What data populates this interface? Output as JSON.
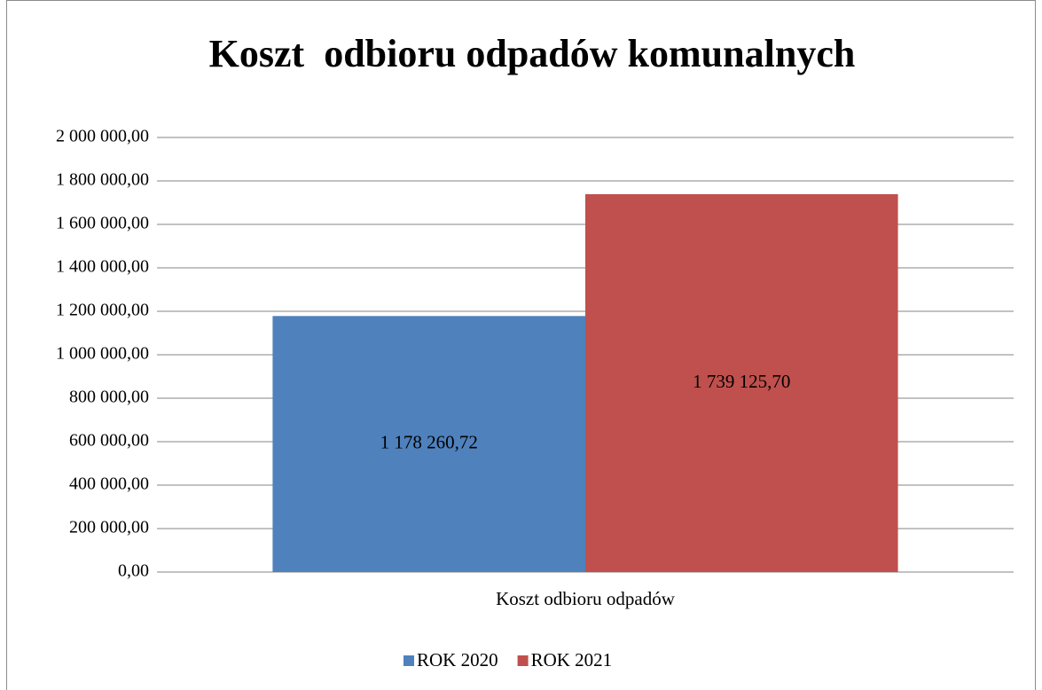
{
  "chart_data": {
    "type": "bar",
    "title": "Koszt  odbioru odpadów komunalnych",
    "categories": [
      "Koszt odbioru odpadów"
    ],
    "series": [
      {
        "name": "ROK 2020",
        "color": "#4f81bd",
        "values": [
          1178260.72
        ],
        "value_labels": [
          "1 178 260,72"
        ]
      },
      {
        "name": "ROK 2021",
        "color": "#c0504d",
        "values": [
          1739125.7
        ],
        "value_labels": [
          "1 739 125,70"
        ]
      }
    ],
    "ylim": [
      0,
      2000000
    ],
    "yticks": [
      {
        "value": 0,
        "label": "0,00"
      },
      {
        "value": 200000,
        "label": "200 000,00"
      },
      {
        "value": 400000,
        "label": "400 000,00"
      },
      {
        "value": 600000,
        "label": "600 000,00"
      },
      {
        "value": 800000,
        "label": "800 000,00"
      },
      {
        "value": 1000000,
        "label": "1 000 000,00"
      },
      {
        "value": 1200000,
        "label": "1 200 000,00"
      },
      {
        "value": 1400000,
        "label": "1 400 000,00"
      },
      {
        "value": 1600000,
        "label": "1 600 000,00"
      },
      {
        "value": 1800000,
        "label": "1 800 000,00"
      },
      {
        "value": 2000000,
        "label": "2 000 000,00"
      }
    ],
    "grid": true,
    "legend": "bottom"
  }
}
